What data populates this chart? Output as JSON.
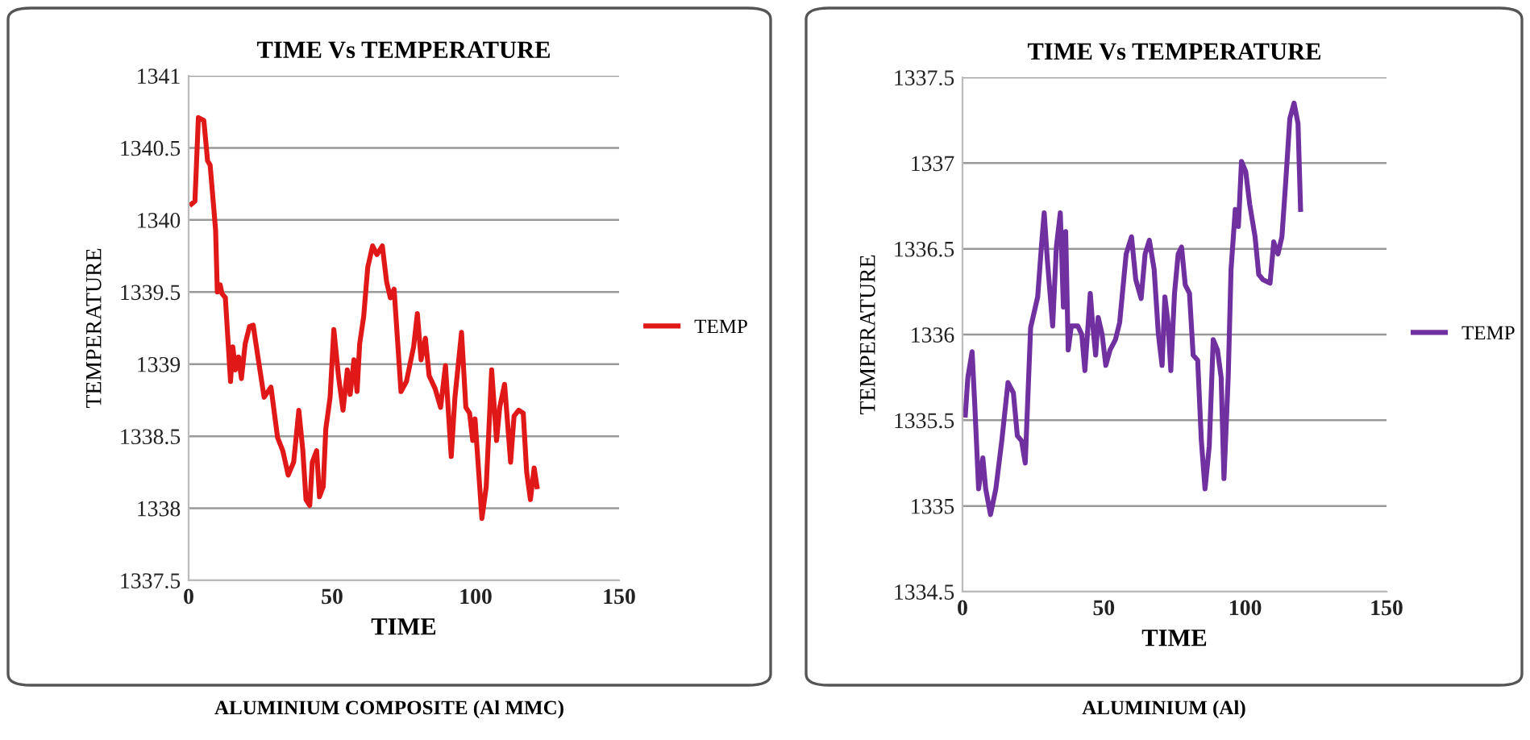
{
  "chart_data": [
    {
      "type": "line",
      "title": "TIME Vs TEMPERATURE",
      "xlabel": "TIME",
      "ylabel": "TEMPERATURE",
      "annotations": [
        "ALUMINIUM COMPOSITE (Al MMC)"
      ],
      "xlim": [
        0,
        150
      ],
      "xticks": [
        0,
        50,
        100,
        150
      ],
      "ylim": [
        1337.5,
        1341
      ],
      "yticks": [
        1337.5,
        1338,
        1338.5,
        1339,
        1339.5,
        1340,
        1340.5,
        1341
      ],
      "grid": "y",
      "legend": "right",
      "marker": "none",
      "line_style": "solid",
      "series": [
        {
          "name": "TEMP",
          "color": "#e01818",
          "x": [
            1,
            2.2,
            3.4,
            5.3,
            6.6,
            7.5,
            9.4,
            10,
            11,
            11.6,
            12.8,
            14.6,
            15.4,
            16.3,
            17.4,
            18.4,
            19.7,
            21.2,
            22.5,
            24,
            26.3,
            28.7,
            31,
            32.8,
            34.7,
            36.6,
            38.4,
            39.8,
            40.9,
            42.2,
            43.1,
            44.6,
            45.6,
            46.9,
            47.8,
            49.3,
            50.6,
            52.2,
            53.8,
            55.3,
            56.3,
            57.6,
            58.7,
            59.6,
            61,
            62.4,
            64.1,
            65.6,
            67.5,
            69,
            70.3,
            71.6,
            74,
            75.9,
            78.4,
            79.7,
            81,
            82.5,
            83.8,
            85.9,
            87.8,
            89.5,
            91.5,
            92.8,
            95.1,
            96.6,
            97.9,
            99,
            99.8,
            102.2,
            103.7,
            105.6,
            107.3,
            108.4,
            110.1,
            112.2,
            113.4,
            115,
            116.6,
            117.8,
            119.1,
            120.4,
            121.4
          ],
          "values": [
            1340.11,
            1340.13,
            1340.71,
            1340.69,
            1340.41,
            1340.38,
            1339.93,
            1339.5,
            1339.55,
            1339.49,
            1339.46,
            1338.88,
            1339.12,
            1338.96,
            1339.05,
            1338.9,
            1339.14,
            1339.26,
            1339.27,
            1339.07,
            1338.77,
            1338.84,
            1338.49,
            1338.4,
            1338.23,
            1338.32,
            1338.68,
            1338.4,
            1338.06,
            1338.02,
            1338.32,
            1338.4,
            1338.08,
            1338.15,
            1338.55,
            1338.77,
            1339.24,
            1338.92,
            1338.68,
            1338.96,
            1338.79,
            1339.03,
            1338.81,
            1339.14,
            1339.33,
            1339.67,
            1339.82,
            1339.76,
            1339.82,
            1339.57,
            1339.46,
            1339.52,
            1338.81,
            1338.88,
            1339.12,
            1339.35,
            1339.03,
            1339.18,
            1338.92,
            1338.83,
            1338.7,
            1338.99,
            1338.36,
            1338.77,
            1339.22,
            1338.7,
            1338.66,
            1338.47,
            1338.62,
            1337.93,
            1338.15,
            1338.96,
            1338.47,
            1338.7,
            1338.86,
            1338.32,
            1338.64,
            1338.68,
            1338.66,
            1338.25,
            1338.06,
            1338.28,
            1338.15
          ]
        }
      ]
    },
    {
      "type": "line",
      "title": "TIME Vs TEMPERATURE",
      "xlabel": "TIME",
      "ylabel": "TEMPERATURE",
      "annotations": [
        "ALUMINIUM (Al)"
      ],
      "xlim": [
        0,
        150
      ],
      "xticks": [
        0,
        50,
        100,
        150
      ],
      "ylim": [
        1334.5,
        1337.5
      ],
      "yticks": [
        1334.5,
        1335,
        1335.5,
        1336,
        1336.5,
        1337,
        1337.5
      ],
      "grid": "y",
      "legend": "right",
      "marker": "none",
      "line_style": "solid",
      "series": [
        {
          "name": "TEMP",
          "color": "#7030a0",
          "x": [
            1,
            1.9,
            3.4,
            4.4,
            5.7,
            7.2,
            8.2,
            9.9,
            11.8,
            13.9,
            16.1,
            18,
            19.4,
            20.9,
            22.2,
            24.1,
            26.6,
            27.9,
            28.9,
            30,
            31.9,
            33.2,
            34.6,
            35.7,
            36.5,
            37.4,
            38.5,
            40.8,
            42.2,
            43.3,
            45.2,
            46,
            47.1,
            48,
            49.4,
            50.7,
            52.2,
            54.1,
            55.6,
            57.9,
            59.8,
            61.3,
            63.2,
            64.6,
            66.1,
            67.8,
            69.3,
            70.6,
            71.6,
            72.7,
            73.7,
            75,
            76.3,
            77.5,
            78.8,
            80.3,
            81.6,
            83.2,
            84.5,
            85.8,
            87.3,
            88.7,
            90.2,
            91.5,
            92.5,
            94,
            95,
            96.5,
            97.6,
            98.7,
            100.2,
            101.6,
            103.5,
            104.8,
            106.3,
            108.8,
            110.1,
            111.6,
            113,
            114.3,
            115.8,
            117.3,
            118.7,
            119.6
          ],
          "values": [
            1335.53,
            1335.75,
            1335.9,
            1335.57,
            1335.1,
            1335.28,
            1335.1,
            1334.95,
            1335.1,
            1335.38,
            1335.72,
            1335.66,
            1335.41,
            1335.38,
            1335.25,
            1336.04,
            1336.22,
            1336.51,
            1336.71,
            1336.44,
            1336.05,
            1336.51,
            1336.71,
            1336.16,
            1336.6,
            1335.91,
            1336.05,
            1336.05,
            1336.0,
            1335.79,
            1336.24,
            1336.07,
            1335.88,
            1336.1,
            1336.0,
            1335.82,
            1335.91,
            1335.97,
            1336.07,
            1336.47,
            1336.57,
            1336.32,
            1336.21,
            1336.47,
            1336.55,
            1336.38,
            1336.0,
            1335.82,
            1336.22,
            1336.07,
            1335.79,
            1336.24,
            1336.47,
            1336.51,
            1336.29,
            1336.24,
            1335.88,
            1335.85,
            1335.38,
            1335.1,
            1335.35,
            1335.97,
            1335.91,
            1335.75,
            1335.16,
            1335.75,
            1336.38,
            1336.73,
            1336.63,
            1337.01,
            1336.95,
            1336.76,
            1336.57,
            1336.35,
            1336.32,
            1336.3,
            1336.54,
            1336.47,
            1336.57,
            1336.88,
            1337.26,
            1337.35,
            1337.23,
            1336.73
          ]
        }
      ]
    }
  ]
}
